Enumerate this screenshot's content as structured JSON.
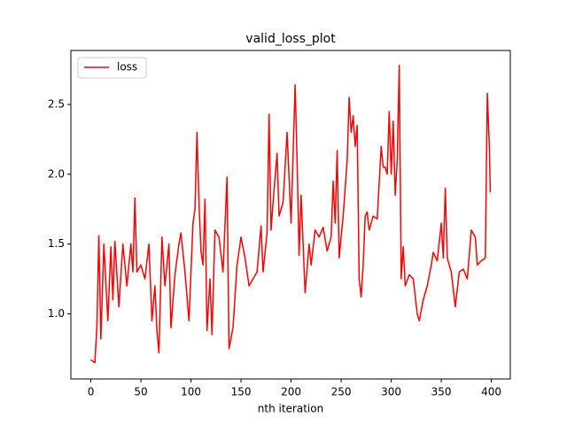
{
  "chart_data": {
    "type": "line",
    "title": "valid_loss_plot",
    "x_label": "nth iteration",
    "x": [
      0,
      4,
      6,
      8,
      10,
      13,
      17,
      20,
      22,
      24,
      28,
      32,
      36,
      40,
      42,
      44,
      46,
      50,
      54,
      58,
      61,
      64,
      66,
      68,
      71,
      74,
      78,
      80,
      84,
      88,
      90,
      94,
      98,
      102,
      104,
      106,
      108,
      110,
      112,
      114,
      116,
      119,
      121,
      124,
      128,
      132,
      136,
      138,
      142,
      146,
      150,
      154,
      158,
      162,
      166,
      170,
      172,
      176,
      178,
      180,
      182,
      186,
      188,
      192,
      196,
      200,
      204,
      206,
      208,
      210,
      214,
      218,
      220,
      224,
      228,
      232,
      236,
      240,
      242,
      244,
      246,
      248,
      250,
      252,
      256,
      258,
      260,
      262,
      264,
      266,
      268,
      270,
      272,
      274,
      276,
      278,
      282,
      286,
      290,
      292,
      294,
      296,
      298,
      300,
      302,
      304,
      306,
      308,
      310,
      312,
      314,
      318,
      322,
      326,
      328,
      332,
      336,
      340,
      342,
      346,
      350,
      352,
      354,
      356,
      360,
      364,
      368,
      372,
      376,
      380,
      384,
      386,
      390,
      394,
      396,
      398,
      399
    ],
    "series": [
      {
        "name": "loss",
        "color": "#ff0000",
        "values": [
          0.67,
          0.65,
          0.9,
          1.56,
          0.82,
          1.5,
          0.95,
          1.48,
          1.1,
          1.52,
          1.05,
          1.5,
          1.2,
          1.5,
          1.3,
          1.83,
          1.3,
          1.35,
          1.25,
          1.5,
          0.95,
          1.2,
          0.88,
          0.72,
          1.55,
          1.2,
          1.5,
          0.9,
          1.28,
          1.5,
          1.58,
          1.3,
          0.95,
          1.65,
          1.75,
          2.3,
          1.8,
          1.45,
          1.35,
          1.82,
          0.88,
          1.25,
          0.85,
          1.6,
          1.55,
          1.3,
          1.98,
          0.75,
          0.9,
          1.35,
          1.55,
          1.4,
          1.2,
          1.25,
          1.3,
          1.63,
          1.3,
          1.58,
          2.43,
          1.6,
          1.8,
          2.15,
          1.7,
          1.8,
          2.3,
          1.65,
          2.64,
          2.1,
          1.42,
          1.85,
          1.15,
          1.5,
          1.35,
          1.6,
          1.55,
          1.62,
          1.45,
          1.55,
          1.95,
          1.65,
          2.17,
          1.4,
          1.55,
          1.7,
          2.1,
          2.55,
          2.3,
          2.42,
          2.2,
          2.35,
          1.25,
          1.12,
          1.35,
          1.7,
          1.73,
          1.6,
          1.7,
          1.68,
          2.2,
          2.05,
          2.05,
          2.0,
          2.45,
          2.0,
          2.38,
          1.85,
          2.1,
          2.78,
          1.25,
          1.48,
          1.2,
          1.28,
          1.25,
          1.0,
          0.95,
          1.1,
          1.2,
          1.35,
          1.44,
          1.38,
          1.65,
          1.4,
          1.9,
          1.4,
          1.3,
          1.05,
          1.3,
          1.32,
          1.25,
          1.6,
          1.55,
          1.35,
          1.38,
          1.4,
          2.58,
          2.2,
          1.87
        ]
      }
    ],
    "xlim": [
      -19.95,
      418.95
    ],
    "ylim": [
      0.533,
      2.887
    ],
    "xticks": [
      0,
      50,
      100,
      150,
      200,
      250,
      300,
      350,
      400
    ],
    "yticks": [
      {
        "value": 1.0,
        "label": "1.0"
      },
      {
        "value": 1.5,
        "label": "1.5"
      },
      {
        "value": 2.0,
        "label": "2.0"
      },
      {
        "value": 2.5,
        "label": "2.5"
      }
    ],
    "legend": "upper left"
  }
}
